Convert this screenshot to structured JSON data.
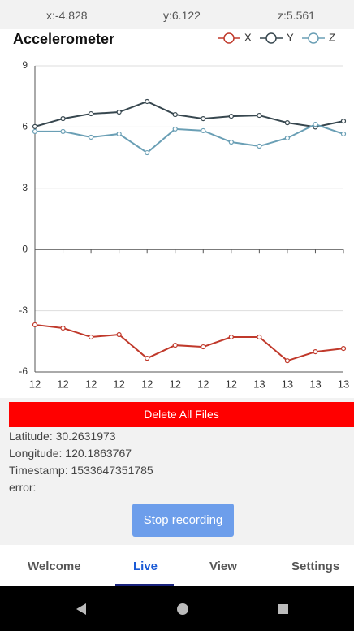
{
  "status": {
    "x": "x:-4.828",
    "y": "y:6.122",
    "z": "z:5.561"
  },
  "chart_data": {
    "type": "line",
    "title": "Accelerometer",
    "categories": [
      "12",
      "12",
      "12",
      "12",
      "12",
      "12",
      "12",
      "12",
      "13",
      "13",
      "13",
      "13"
    ],
    "series": [
      {
        "name": "X",
        "color": "#c0392b",
        "values": [
          -3.69,
          -3.85,
          -4.29,
          -4.17,
          -5.33,
          -4.69,
          -4.77,
          -4.29,
          -4.29,
          -5.45,
          -5.01,
          -4.85
        ]
      },
      {
        "name": "Y",
        "color": "#37474f",
        "values": [
          6.02,
          6.41,
          6.65,
          6.73,
          7.25,
          6.61,
          6.41,
          6.53,
          6.57,
          6.21,
          6.0,
          6.29
        ]
      },
      {
        "name": "Z",
        "color": "#6a9fb5",
        "values": [
          5.78,
          5.78,
          5.5,
          5.66,
          4.74,
          5.9,
          5.82,
          5.26,
          5.06,
          5.46,
          6.13,
          5.66
        ]
      }
    ],
    "ylim": [
      -6,
      9
    ],
    "yticks": [
      -6,
      -3,
      0,
      3,
      6,
      9
    ],
    "grid": true,
    "legend": "top-right"
  },
  "delete_button": "Delete All Files",
  "info": [
    "Latitude: 30.2631973",
    "Longitude: 120.1863767",
    "Timestamp: 1533647351785",
    "error:"
  ],
  "stop_button": "Stop recording",
  "nav": [
    "Welcome",
    "Live",
    "View",
    "Settings"
  ]
}
